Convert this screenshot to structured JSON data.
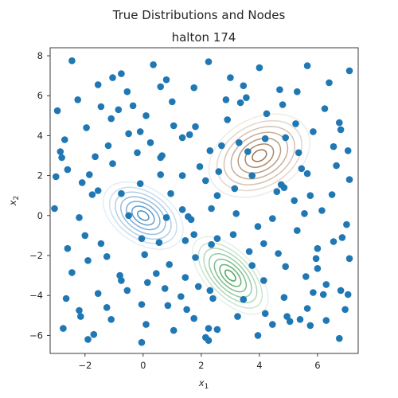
{
  "chart_data": {
    "type": "scatter",
    "suptitle": "True Distributions  and Nodes",
    "title": "halton 174",
    "xlabel": "x",
    "xlabel_sub": "1",
    "ylabel": "x",
    "ylabel_sub": "2",
    "xlim": [
      -3.2,
      7.4
    ],
    "ylim": [
      -6.9,
      8.4
    ],
    "xticks": [
      -2,
      0,
      2,
      4,
      6
    ],
    "yticks": [
      -6,
      -4,
      -2,
      0,
      2,
      4,
      6,
      8
    ],
    "point_color": "#1f77b4",
    "distributions": [
      {
        "name": "blue",
        "center": [
          0,
          0
        ],
        "color": "#2a7ab9",
        "cov": [
          [
            1.0,
            -0.5
          ],
          [
            -0.5,
            1.5
          ]
        ]
      },
      {
        "name": "green",
        "center": [
          3,
          -3
        ],
        "color": "#2a9442",
        "cov": [
          [
            0.9,
            -0.8
          ],
          [
            -0.8,
            2.0
          ]
        ]
      },
      {
        "name": "brown",
        "center": [
          4,
          3
        ],
        "color": "#8c5a2e",
        "cov": [
          [
            1.6,
            0.6
          ],
          [
            0.6,
            2.3
          ]
        ]
      }
    ],
    "points": [
      [
        -2.45,
        7.75
      ],
      [
        -1.55,
        6.55
      ],
      [
        -0.75,
        7.1
      ],
      [
        0.35,
        7.55
      ],
      [
        0.6,
        6.45
      ],
      [
        2.25,
        7.7
      ],
      [
        3.0,
        6.9
      ],
      [
        4.0,
        7.4
      ],
      [
        5.65,
        7.5
      ],
      [
        7.1,
        7.25
      ],
      [
        -1.05,
        6.9
      ],
      [
        -0.55,
        6.2
      ],
      [
        -0.35,
        5.5
      ],
      [
        1.0,
        5.7
      ],
      [
        1.75,
        6.4
      ],
      [
        3.45,
        6.5
      ],
      [
        3.55,
        5.9
      ],
      [
        4.7,
        6.3
      ],
      [
        5.3,
        6.2
      ],
      [
        6.4,
        6.65
      ],
      [
        -2.95,
        5.25
      ],
      [
        -2.25,
        5.8
      ],
      [
        -1.45,
        5.45
      ],
      [
        -0.85,
        5.3
      ],
      [
        0.1,
        5.0
      ],
      [
        0.8,
        6.8
      ],
      [
        2.85,
        5.8
      ],
      [
        3.35,
        5.65
      ],
      [
        4.8,
        5.55
      ],
      [
        6.25,
        5.35
      ],
      [
        -1.95,
        4.4
      ],
      [
        -1.1,
        4.85
      ],
      [
        -0.5,
        4.1
      ],
      [
        -0.1,
        4.2
      ],
      [
        1.05,
        4.5
      ],
      [
        1.8,
        4.45
      ],
      [
        2.9,
        4.8
      ],
      [
        4.25,
        5.1
      ],
      [
        5.25,
        4.6
      ],
      [
        6.75,
        4.65
      ],
      [
        -2.7,
        3.8
      ],
      [
        -1.2,
        3.5
      ],
      [
        0.25,
        3.65
      ],
      [
        1.6,
        4.05
      ],
      [
        2.7,
        3.5
      ],
      [
        3.3,
        3.65
      ],
      [
        4.9,
        3.9
      ],
      [
        5.85,
        4.2
      ],
      [
        6.8,
        4.3
      ],
      [
        7.05,
        3.25
      ],
      [
        -2.85,
        3.2
      ],
      [
        -1.65,
        2.95
      ],
      [
        -0.2,
        3.15
      ],
      [
        0.6,
        2.9
      ],
      [
        1.35,
        3.9
      ],
      [
        2.3,
        3.25
      ],
      [
        3.6,
        3.2
      ],
      [
        4.2,
        3.85
      ],
      [
        5.35,
        3.15
      ],
      [
        6.55,
        3.45
      ],
      [
        -2.8,
        2.9
      ],
      [
        -1.05,
        2.6
      ],
      [
        0.6,
        2.05
      ],
      [
        1.95,
        2.45
      ],
      [
        2.6,
        2.2
      ],
      [
        3.75,
        2.0
      ],
      [
        4.75,
        1.55
      ],
      [
        5.45,
        2.35
      ],
      [
        5.65,
        2.1
      ],
      [
        6.65,
        2.5
      ],
      [
        -2.6,
        2.3
      ],
      [
        -1.85,
        2.05
      ],
      [
        -1.55,
        1.25
      ],
      [
        -0.1,
        1.6
      ],
      [
        1.35,
        2.0
      ],
      [
        2.15,
        1.75
      ],
      [
        2.55,
        1.0
      ],
      [
        3.15,
        1.35
      ],
      [
        4.85,
        1.4
      ],
      [
        7.1,
        1.8
      ],
      [
        -2.1,
        1.65
      ],
      [
        -1.75,
        1.05
      ],
      [
        -0.75,
        1.1
      ],
      [
        0.95,
        1.1
      ],
      [
        1.35,
        0.3
      ],
      [
        3.2,
        0.1
      ],
      [
        4.6,
        1.2
      ],
      [
        5.2,
        0.75
      ],
      [
        6.5,
        1.05
      ],
      [
        6.15,
        0.25
      ],
      [
        -3.05,
        0.35
      ],
      [
        -2.2,
        -0.1
      ],
      [
        -0.5,
        0.0
      ],
      [
        0.8,
        -0.1
      ],
      [
        1.55,
        -0.05
      ],
      [
        2.35,
        0.35
      ],
      [
        3.95,
        -0.55
      ],
      [
        4.45,
        -0.15
      ],
      [
        5.55,
        0.1
      ],
      [
        7.0,
        -0.45
      ],
      [
        -2.0,
        -1.0
      ],
      [
        -1.45,
        -1.4
      ],
      [
        -0.05,
        -1.15
      ],
      [
        0.55,
        -1.35
      ],
      [
        1.65,
        -0.2
      ],
      [
        2.55,
        -1.15
      ],
      [
        3.1,
        -0.95
      ],
      [
        4.15,
        -1.4
      ],
      [
        5.3,
        -0.75
      ],
      [
        6.85,
        -1.1
      ],
      [
        -2.6,
        -1.65
      ],
      [
        -1.9,
        -2.25
      ],
      [
        -1.25,
        -2.05
      ],
      [
        0.05,
        -1.95
      ],
      [
        1.45,
        -1.25
      ],
      [
        2.35,
        -1.45
      ],
      [
        3.65,
        -1.8
      ],
      [
        4.65,
        -1.9
      ],
      [
        6.0,
        -1.65
      ],
      [
        6.55,
        -1.3
      ],
      [
        -2.45,
        -2.85
      ],
      [
        -0.8,
        -3.0
      ],
      [
        -0.75,
        -3.25
      ],
      [
        0.45,
        -2.9
      ],
      [
        0.9,
        -2.45
      ],
      [
        1.8,
        -2.1
      ],
      [
        3.75,
        -2.5
      ],
      [
        4.9,
        -2.55
      ],
      [
        5.95,
        -2.15
      ],
      [
        7.1,
        -2.15
      ],
      [
        -0.55,
        -3.75
      ],
      [
        0.15,
        -3.35
      ],
      [
        0.75,
        -3.65
      ],
      [
        1.45,
        -3.1
      ],
      [
        2.3,
        -3.75
      ],
      [
        4.15,
        -3.25
      ],
      [
        5.6,
        -3.05
      ],
      [
        6.3,
        -3.45
      ],
      [
        6.0,
        -2.65
      ],
      [
        6.8,
        -3.75
      ],
      [
        -2.65,
        -4.15
      ],
      [
        -1.55,
        -3.9
      ],
      [
        -0.05,
        -4.45
      ],
      [
        1.3,
        -4.05
      ],
      [
        1.9,
        -3.55
      ],
      [
        3.45,
        -4.2
      ],
      [
        4.85,
        -4.1
      ],
      [
        5.85,
        -3.85
      ],
      [
        6.2,
        -3.95
      ],
      [
        7.05,
        -3.95
      ],
      [
        -2.2,
        -4.75
      ],
      [
        -1.25,
        -4.6
      ],
      [
        0.85,
        -4.5
      ],
      [
        1.5,
        -4.7
      ],
      [
        2.4,
        -4.15
      ],
      [
        3.25,
        -5.05
      ],
      [
        4.2,
        -4.9
      ],
      [
        5.05,
        -5.3
      ],
      [
        5.65,
        -4.65
      ],
      [
        6.95,
        -4.7
      ],
      [
        -2.15,
        -5.05
      ],
      [
        -1.1,
        -5.2
      ],
      [
        0.1,
        -5.45
      ],
      [
        1.75,
        -5.15
      ],
      [
        2.25,
        -5.65
      ],
      [
        4.45,
        -5.45
      ],
      [
        4.95,
        -5.05
      ],
      [
        5.75,
        -5.5
      ],
      [
        6.3,
        -5.25
      ],
      [
        6.75,
        -6.15
      ],
      [
        -2.75,
        -5.65
      ],
      [
        -1.9,
        -6.2
      ],
      [
        -1.7,
        -5.95
      ],
      [
        -0.05,
        -6.35
      ],
      [
        1.05,
        -5.75
      ],
      [
        2.15,
        -6.1
      ],
      [
        2.55,
        -5.7
      ],
      [
        3.95,
        -6.0
      ],
      [
        5.4,
        -5.2
      ],
      [
        2.25,
        -6.25
      ],
      [
        -3.0,
        1.95
      ],
      [
        5.75,
        1.0
      ],
      [
        1.75,
        -0.95
      ],
      [
        0.65,
        3.0
      ]
    ]
  }
}
